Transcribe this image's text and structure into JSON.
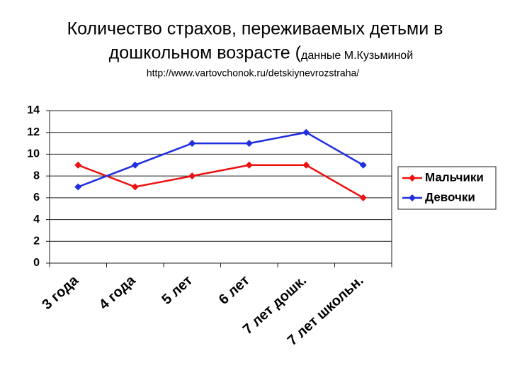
{
  "chart_data": {
    "type": "line",
    "title": [
      "Количество страхов, переживаемых детьми в",
      "дошкольном возрасте ("
    ],
    "title_note": "данные М.Кузьминой",
    "subtitle": "http://www.vartovchonok.ru/detskiynevrozstraha/",
    "categories": [
      "3 года",
      "4 года",
      "5 лет",
      "6 лет",
      "7 лет дошк.",
      "7 лет школьн."
    ],
    "series": [
      {
        "name": "Мальчики",
        "color": "#ee1111",
        "values": [
          9,
          7,
          8,
          9,
          9,
          6
        ]
      },
      {
        "name": "Девочки",
        "color": "#1f2ee0",
        "values": [
          7,
          9,
          11,
          11,
          12,
          9
        ]
      }
    ],
    "ylim": [
      0,
      14
    ],
    "yticks": [
      0,
      2,
      4,
      6,
      8,
      10,
      12,
      14
    ],
    "grid": true,
    "legend": "right"
  }
}
